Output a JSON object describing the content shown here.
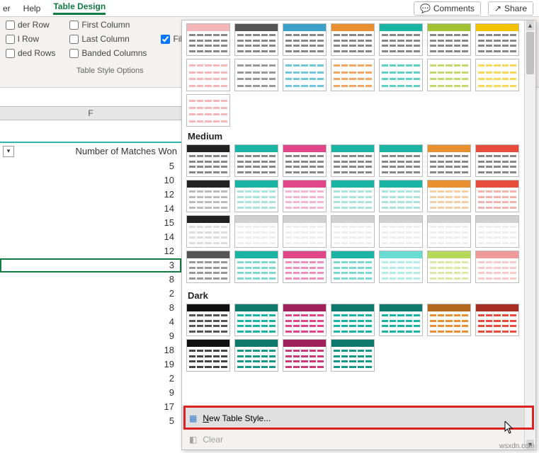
{
  "menubar": {
    "items": [
      "er",
      "Help",
      "Table Design"
    ],
    "active_index": 2
  },
  "topright": {
    "comments": "Comments",
    "share": "Share"
  },
  "ribbon": {
    "col1": [
      "der Row",
      "l Row",
      "ded Rows"
    ],
    "col2": [
      "First Column",
      "Last Column",
      "Banded Columns"
    ],
    "col3_label": "Filter Butto",
    "checked": {
      "col1": [
        false,
        false,
        false
      ],
      "col2": [
        false,
        false,
        false
      ],
      "filter": true
    },
    "group_label": "Table Style Options"
  },
  "sheet": {
    "col_letter": "F",
    "header_label": "Number of Matches Won",
    "values": [
      5,
      10,
      12,
      14,
      15,
      14,
      12,
      3,
      8,
      2,
      8,
      4,
      9,
      18,
      19,
      2,
      9,
      17,
      5
    ],
    "selected_index": 7
  },
  "gallery": {
    "sections": {
      "light_row1": [
        {
          "hdr": "#f4b6b6",
          "row": "#888"
        },
        {
          "hdr": "#555",
          "row": "#888"
        },
        {
          "hdr": "#3aa0c9",
          "row": "#888"
        },
        {
          "hdr": "#e88f2f",
          "row": "#888"
        },
        {
          "hdr": "#19b4a4",
          "row": "#888"
        },
        {
          "hdr": "#a0c233",
          "row": "#888"
        },
        {
          "hdr": "#f2c200",
          "row": "#888"
        }
      ],
      "light_row2": [
        {
          "hdr": "#f4b6b6",
          "row": "#f4b6b6"
        },
        {
          "hdr": "#999",
          "row": "#999"
        },
        {
          "hdr": "#6fc7d9",
          "row": "#6fc7d9"
        },
        {
          "hdr": "#f3a763",
          "row": "#f3a763"
        },
        {
          "hdr": "#5fd0c5",
          "row": "#5fd0c5"
        },
        {
          "hdr": "#c0da6e",
          "row": "#c0da6e"
        },
        {
          "hdr": "#f7d85a",
          "row": "#f7d85a"
        }
      ],
      "light_extra": [
        {
          "hdr": "#f4b6b6",
          "row": "#f4b6b6"
        }
      ],
      "medium_label": "Medium",
      "medium": [
        [
          {
            "hdr": "#222",
            "row": "#888"
          },
          {
            "hdr": "#19b4a4",
            "row": "#888"
          },
          {
            "hdr": "#e1468b",
            "row": "#888"
          },
          {
            "hdr": "#19b4a4",
            "row": "#888"
          },
          {
            "hdr": "#19b4a4",
            "row": "#888"
          },
          {
            "hdr": "#e88f2f",
            "row": "#888"
          },
          {
            "hdr": "#e74c3c",
            "row": "#888"
          }
        ],
        [
          {
            "hdr": "#222",
            "row": "#bbb"
          },
          {
            "hdr": "#19b4a4",
            "row": "#a9e3dc"
          },
          {
            "hdr": "#e1468b",
            "row": "#f2b6d2"
          },
          {
            "hdr": "#19b4a4",
            "row": "#a9e3dc"
          },
          {
            "hdr": "#19b4a4",
            "row": "#a9e3dc"
          },
          {
            "hdr": "#e88f2f",
            "row": "#f5cfa4"
          },
          {
            "hdr": "#e74c3c",
            "row": "#f3b2ab"
          }
        ],
        [
          {
            "hdr": "#222",
            "row": "#ddd"
          },
          {
            "hdr": "#d0d0d0",
            "row": "#eee"
          },
          {
            "hdr": "#d0d0d0",
            "row": "#eee"
          },
          {
            "hdr": "#d0d0d0",
            "row": "#eee"
          },
          {
            "hdr": "#d0d0d0",
            "row": "#eee"
          },
          {
            "hdr": "#d0d0d0",
            "row": "#eee"
          },
          {
            "hdr": "#d0d0d0",
            "row": "#eee"
          }
        ],
        [
          {
            "hdr": "#555",
            "row": "#999"
          },
          {
            "hdr": "#19b4a4",
            "row": "#7bd9cf"
          },
          {
            "hdr": "#e1468b",
            "row": "#ef8fbc"
          },
          {
            "hdr": "#19b4a4",
            "row": "#7bd9cf"
          },
          {
            "hdr": "#69dbd1",
            "row": "#b2ece6"
          },
          {
            "hdr": "#b6d858",
            "row": "#d8eaa3"
          },
          {
            "hdr": "#f19999",
            "row": "#f7c9c9"
          }
        ]
      ],
      "dark_label": "Dark",
      "dark": [
        [
          {
            "hdr": "#111",
            "row": "#555"
          },
          {
            "hdr": "#0f786d",
            "row": "#19b4a4"
          },
          {
            "hdr": "#a0215c",
            "row": "#e1468b"
          },
          {
            "hdr": "#0f786d",
            "row": "#19b4a4"
          },
          {
            "hdr": "#0f786d",
            "row": "#19b4a4"
          },
          {
            "hdr": "#b3671c",
            "row": "#e88f2f"
          },
          {
            "hdr": "#a72e22",
            "row": "#e74c3c"
          }
        ],
        [
          {
            "hdr": "#111",
            "row": "#444"
          },
          {
            "hdr": "#0f786d",
            "row": "#15978a"
          },
          {
            "hdr": "#a0215c",
            "row": "#c93a79"
          },
          {
            "hdr": "#0f786d",
            "row": "#15978a"
          }
        ]
      ]
    },
    "footer": {
      "new_style": "New Table Style...",
      "clear": "Clear"
    }
  },
  "watermark": "wsxdn.com"
}
